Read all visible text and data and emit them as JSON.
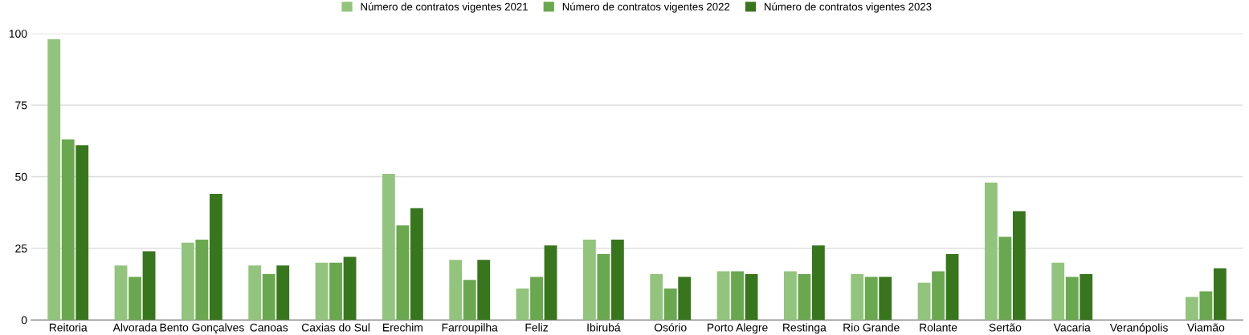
{
  "chart_data": {
    "type": "bar",
    "categories": [
      "Reitoria",
      "Alvorada",
      "Bento Gonçalves",
      "Canoas",
      "Caxias do Sul",
      "Erechim",
      "Farroupilha",
      "Feliz",
      "Ibirubá",
      "Osório",
      "Porto Alegre",
      "Restinga",
      "Rio Grande",
      "Rolante",
      "Sertão",
      "Vacaria",
      "Veranópolis",
      "Viamão"
    ],
    "series": [
      {
        "name": "Número de contratos vigentes 2021",
        "color": "#93c47d",
        "values": [
          98,
          19,
          27,
          19,
          20,
          51,
          21,
          11,
          28,
          16,
          17,
          17,
          16,
          13,
          48,
          20,
          0,
          8
        ]
      },
      {
        "name": "Número de contratos vigentes 2022",
        "color": "#6aa84f",
        "values": [
          63,
          15,
          28,
          16,
          20,
          33,
          14,
          15,
          23,
          11,
          17,
          16,
          15,
          17,
          29,
          15,
          0,
          10
        ]
      },
      {
        "name": "Número de contratos vigentes 2023",
        "color": "#38761d",
        "values": [
          61,
          24,
          44,
          19,
          22,
          39,
          21,
          26,
          28,
          15,
          16,
          26,
          15,
          23,
          38,
          16,
          0,
          18
        ]
      }
    ],
    "ylim": [
      0,
      100
    ],
    "yticks": [
      0,
      25,
      50,
      75,
      100
    ],
    "grid": "y",
    "legend": "top"
  }
}
